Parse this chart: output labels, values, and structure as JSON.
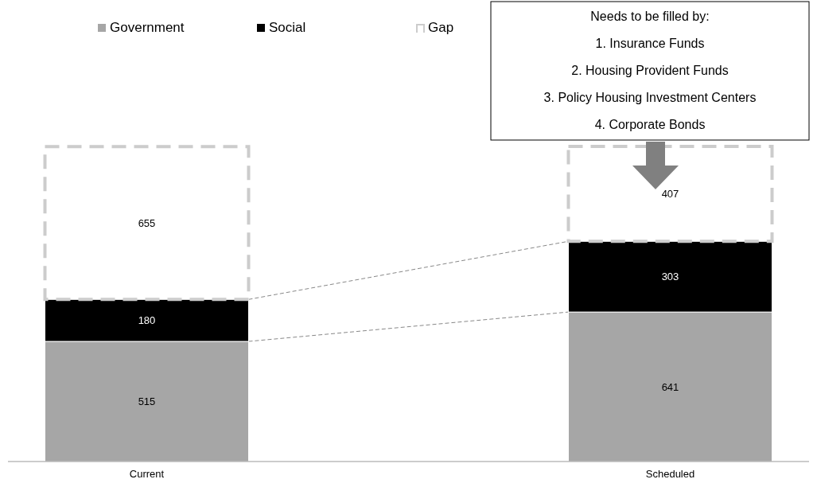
{
  "chart_data": {
    "type": "bar",
    "stacked": true,
    "categories": [
      "Current",
      "Scheduled"
    ],
    "series": [
      {
        "name": "Government",
        "color": "#a6a6a6",
        "values": [
          515,
          641
        ]
      },
      {
        "name": "Social",
        "color": "#000000",
        "values": [
          180,
          303
        ]
      },
      {
        "name": "Gap",
        "color": "#cccccc",
        "values": [
          655,
          407
        ],
        "line_style": "dashed"
      }
    ],
    "data_labels": true,
    "legend": "top left",
    "grid": false,
    "tick_labels": "x",
    "annotations": [
      "Needs to be filled by:",
      "1.  Insurance Funds",
      "2.  Housing Provident Funds",
      "3.  Policy Housing Investment Centers",
      "4.  Corporate Bonds"
    ]
  }
}
